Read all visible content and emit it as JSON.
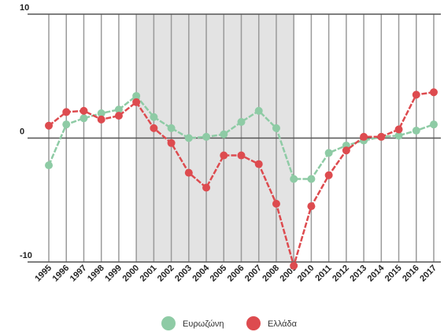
{
  "chart_data": {
    "type": "line",
    "x": [
      1995,
      1996,
      1997,
      1998,
      1999,
      2000,
      2001,
      2002,
      2003,
      2004,
      2005,
      2006,
      2007,
      2008,
      2009,
      2010,
      2011,
      2012,
      2013,
      2014,
      2015,
      2016,
      2017
    ],
    "series": [
      {
        "name": "Ευρωζώνη",
        "color": "#8ecba5",
        "values": [
          -2.2,
          1.1,
          1.6,
          2.0,
          2.3,
          3.4,
          1.7,
          0.8,
          0.0,
          0.1,
          0.3,
          1.3,
          2.2,
          0.8,
          -3.3,
          -3.3,
          -1.2,
          -0.6,
          -0.2,
          0.1,
          0.2,
          0.6,
          1.1
        ]
      },
      {
        "name": "Ελλάδα",
        "color": "#dd4b4f",
        "values": [
          1.0,
          2.1,
          2.2,
          1.5,
          1.8,
          2.9,
          0.8,
          -0.4,
          -2.8,
          -4.0,
          -1.4,
          -1.4,
          -2.1,
          -5.3,
          -10.3,
          -5.5,
          -3.0,
          -1.0,
          0.1,
          0.1,
          0.7,
          3.5,
          3.7
        ]
      }
    ],
    "xlim": [
      1995,
      2017
    ],
    "ylim": [
      -10,
      10
    ],
    "yticks": [
      -10,
      0,
      10
    ],
    "highlight_range": [
      2000,
      2009
    ],
    "legend": "bottom"
  }
}
